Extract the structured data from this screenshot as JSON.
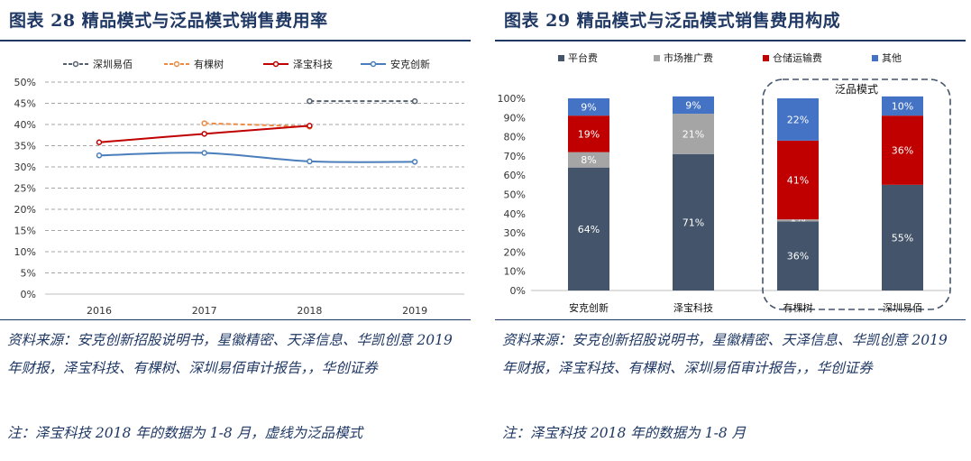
{
  "left": {
    "title": "图表 28 精品模式与泛品模式销售费用率",
    "source": "资料来源：安克创新招股说明书，星徽精密、天泽信息、华凯创意 2019 年财报，泽宝科技、有棵树、深圳易佰审计报告，，华创证券",
    "note": "注：泽宝科技 2018 年的数据为 1-8 月，虚线为泛品模式"
  },
  "right": {
    "title": "图表 29 精品模式与泛品模式销售费用构成",
    "source": "资料来源：安克创新招股说明书，星徽精密、天泽信息、华凯创意 2019 年财报，泽宝科技、有棵树、深圳易佰审计报告，，华创证券",
    "note": "注：泽宝科技 2018 年的数据为 1-8 月",
    "group_label": "泛品模式"
  },
  "chart_data": [
    {
      "type": "line",
      "x": [
        "2016",
        "2017",
        "2018",
        "2019"
      ],
      "ylim": [
        0,
        50
      ],
      "y_ticks": [
        "0%",
        "5%",
        "10%",
        "15%",
        "20%",
        "25%",
        "30%",
        "35%",
        "40%",
        "45%",
        "50%"
      ],
      "series": [
        {
          "name": "深圳易佰",
          "values": [
            null,
            null,
            45.5,
            45.5
          ],
          "dashed": true,
          "color": "#55606d"
        },
        {
          "name": "有棵树",
          "values": [
            null,
            40.3,
            39.5,
            null
          ],
          "dashed": true,
          "color": "#ed8b45"
        },
        {
          "name": "泽宝科技",
          "values": [
            35.8,
            37.8,
            39.7,
            null
          ],
          "dashed": false,
          "color": "#c00000"
        },
        {
          "name": "安克创新",
          "values": [
            32.7,
            33.3,
            31.3,
            31.2
          ],
          "dashed": false,
          "color": "#4a7ebb"
        }
      ]
    },
    {
      "type": "bar",
      "stacked": true,
      "categories": [
        "安克创新",
        "泽宝科技",
        "有棵树",
        "深圳易佰"
      ],
      "ylim": [
        0,
        100
      ],
      "y_ticks": [
        "0%",
        "10%",
        "20%",
        "30%",
        "40%",
        "50%",
        "60%",
        "70%",
        "80%",
        "90%",
        "100%"
      ],
      "series": [
        {
          "name": "平台费",
          "color": "#44546a",
          "values": [
            64,
            71,
            36,
            55
          ],
          "labels": [
            "64%",
            "71%",
            "36%",
            "55%"
          ]
        },
        {
          "name": "市场推广费",
          "color": "#a5a5a5",
          "values": [
            8,
            21,
            1,
            0
          ],
          "labels": [
            "8%",
            "21%",
            "1%",
            ""
          ]
        },
        {
          "name": "仓储运输费",
          "color": "#c00000",
          "values": [
            19,
            0,
            41,
            36
          ],
          "labels": [
            "19%",
            "",
            "41%",
            "36%"
          ]
        },
        {
          "name": "其他",
          "color": "#4472c4",
          "values": [
            9,
            9,
            22,
            10
          ],
          "labels": [
            "9%",
            "9%",
            "22%",
            "10%"
          ]
        }
      ]
    }
  ]
}
